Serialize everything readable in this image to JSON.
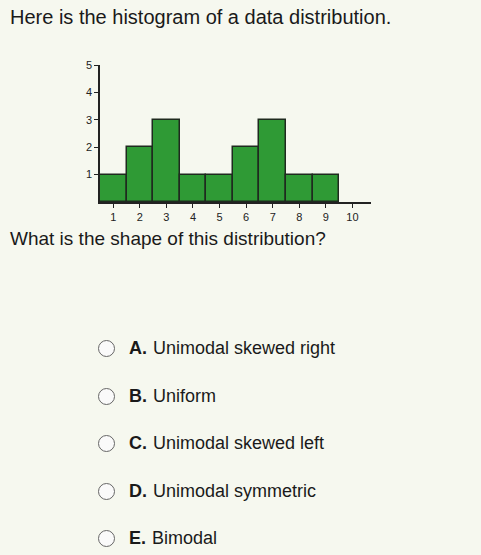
{
  "chart_data": {
    "type": "histogram",
    "title": "Here is the histogram of a data distribution.",
    "bins": [
      0.5,
      1.5,
      2.5,
      3.5,
      4.5,
      5.5,
      6.5,
      7.5,
      8.5,
      9.5
    ],
    "values": [
      1,
      2,
      3,
      1,
      1,
      2,
      3,
      1,
      1
    ],
    "color": "#2f9a35",
    "xlim": [
      0.5,
      10.7
    ],
    "xticks": [
      1,
      2,
      3,
      4,
      5,
      6,
      7,
      8,
      9,
      10
    ],
    "ylim": [
      0,
      5
    ],
    "yticks": [
      1,
      2,
      3,
      4,
      5
    ],
    "grid": false
  },
  "question": "What is the shape of this distribution?",
  "options": [
    {
      "letter": "A.",
      "text": "Unimodal skewed right"
    },
    {
      "letter": "B.",
      "text": "Uniform"
    },
    {
      "letter": "C.",
      "text": "Unimodal skewed left"
    },
    {
      "letter": "D.",
      "text": "Unimodal symmetric"
    },
    {
      "letter": "E.",
      "text": "Bimodal"
    }
  ]
}
